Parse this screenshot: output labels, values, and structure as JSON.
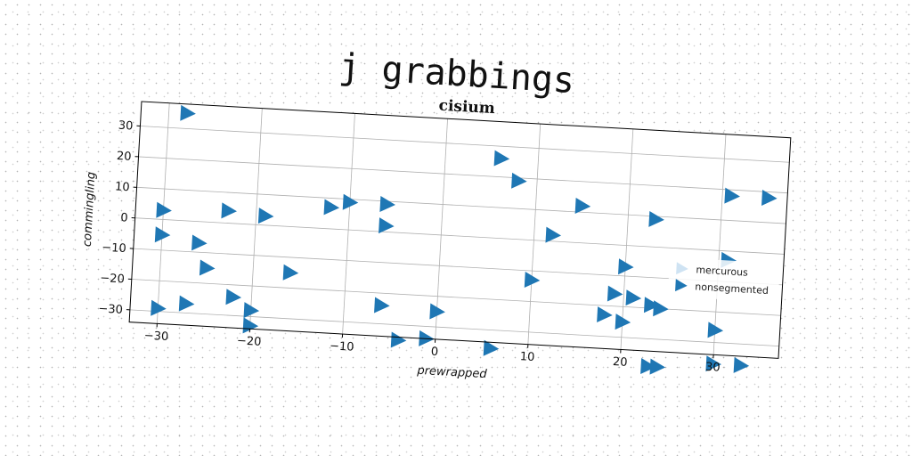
{
  "suptitle": "j grabbings",
  "chart_data": {
    "type": "scatter",
    "title": "cisium",
    "xlabel": "prewrapped",
    "ylabel": "commingling",
    "xlim": [
      -33,
      37
    ],
    "ylim": [
      -34,
      38
    ],
    "xticks": [
      -30,
      -20,
      -10,
      0,
      10,
      20,
      30
    ],
    "yticks": [
      -30,
      -20,
      -10,
      0,
      10,
      20,
      30
    ],
    "grid": true,
    "legend_position": "center-right",
    "marker": "triangle-right",
    "color": "#1f77b4",
    "legend": [
      {
        "label": "mercurous",
        "color": "#cfe3f3"
      },
      {
        "label": "nonsegmented",
        "color": "#1f77b4"
      }
    ],
    "series": [
      {
        "name": "nonsegmented",
        "points": [
          [
            -28,
            35
          ],
          [
            6,
            26
          ],
          [
            8,
            19
          ],
          [
            15,
            12
          ],
          [
            23,
            9
          ],
          [
            31,
            18
          ],
          [
            35,
            18
          ],
          [
            -30,
            3
          ],
          [
            -23,
            4
          ],
          [
            -19,
            3
          ],
          [
            -12,
            7
          ],
          [
            -10,
            9
          ],
          [
            -6,
            9
          ],
          [
            -6,
            2
          ],
          [
            12,
            2
          ],
          [
            -30,
            -5
          ],
          [
            -26,
            -7
          ],
          [
            20,
            -7
          ],
          [
            31,
            -3
          ],
          [
            -25,
            -15
          ],
          [
            -16,
            -15
          ],
          [
            10,
            -13
          ],
          [
            19,
            -16
          ],
          [
            21,
            -17
          ],
          [
            23,
            -19
          ],
          [
            24,
            -20
          ],
          [
            -22,
            -24
          ],
          [
            -6,
            -24
          ],
          [
            0,
            -25
          ],
          [
            18,
            -23
          ],
          [
            20,
            -25
          ],
          [
            30,
            -26
          ],
          [
            -30,
            -29
          ],
          [
            -27,
            -27
          ],
          [
            -20,
            -28
          ],
          [
            -20,
            -33
          ],
          [
            -4,
            -35
          ],
          [
            -1,
            -34
          ],
          [
            6,
            -36
          ],
          [
            23,
            -39
          ],
          [
            24,
            -39
          ],
          [
            30,
            -37
          ],
          [
            33,
            -37
          ]
        ]
      }
    ]
  }
}
